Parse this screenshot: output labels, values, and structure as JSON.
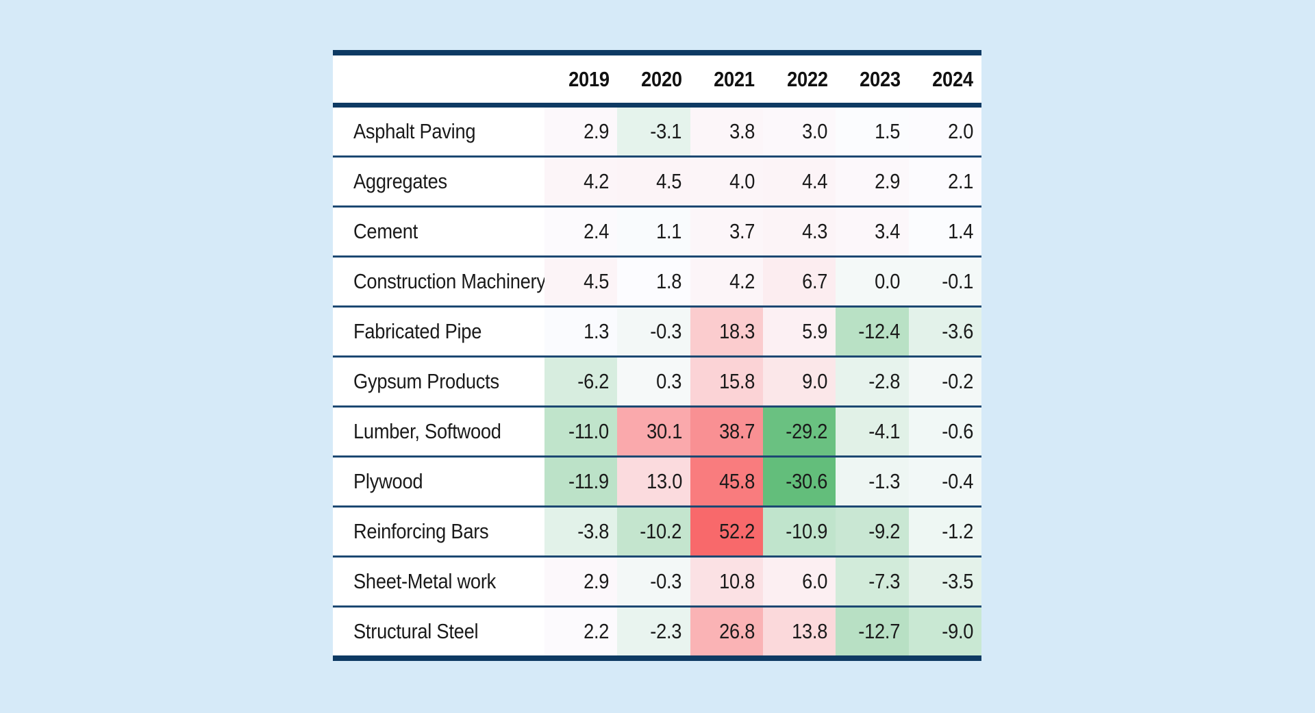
{
  "page": {
    "background_color": "#d6eaf8"
  },
  "table_style": {
    "border_color": "#0e3a63",
    "separator_color": "#1c4872",
    "header_background": "#ffffff",
    "label_column_background": "#ffffff",
    "text_color": "#1a1a1a",
    "color_scale": {
      "max_color": "#F8696B",
      "mid_color": "#FCFCFF",
      "min_color": "#63BE7B",
      "midpoint_rule": "median"
    }
  },
  "chart_data": {
    "type": "heatmap",
    "title": "",
    "x": [
      "2019",
      "2020",
      "2021",
      "2022",
      "2023",
      "2024"
    ],
    "corner_label": "",
    "series": [
      {
        "name": "Asphalt Paving",
        "values": [
          2.9,
          -3.1,
          3.8,
          3.0,
          1.5,
          2.0
        ]
      },
      {
        "name": "Aggregates",
        "values": [
          4.2,
          4.5,
          4.0,
          4.4,
          2.9,
          2.1
        ]
      },
      {
        "name": "Cement",
        "values": [
          2.4,
          1.1,
          3.7,
          4.3,
          3.4,
          1.4
        ]
      },
      {
        "name": "Construction Machinery",
        "values": [
          4.5,
          1.8,
          4.2,
          6.7,
          0.0,
          -0.1
        ]
      },
      {
        "name": "Fabricated Pipe",
        "values": [
          1.3,
          -0.3,
          18.3,
          5.9,
          -12.4,
          -3.6
        ]
      },
      {
        "name": "Gypsum Products",
        "values": [
          -6.2,
          0.3,
          15.8,
          9.0,
          -2.8,
          -0.2
        ]
      },
      {
        "name": "Lumber, Softwood",
        "values": [
          -11.0,
          30.1,
          38.7,
          -29.2,
          -4.1,
          -0.6
        ]
      },
      {
        "name": "Plywood",
        "values": [
          -11.9,
          13.0,
          45.8,
          -30.6,
          -1.3,
          -0.4
        ]
      },
      {
        "name": "Reinforcing Bars",
        "values": [
          -3.8,
          -10.2,
          52.2,
          -10.9,
          -9.2,
          -1.2
        ]
      },
      {
        "name": "Sheet-Metal work",
        "values": [
          2.9,
          -0.3,
          10.8,
          6.0,
          -7.3,
          -3.5
        ]
      },
      {
        "name": "Structural Steel",
        "values": [
          2.2,
          -2.3,
          26.8,
          13.8,
          -12.7,
          -9.0
        ]
      }
    ],
    "value_range": [
      -30.6,
      52.2
    ],
    "legend": "none",
    "grid": "horizontal rules between rows",
    "color_mapping": "diverging: red for high values, white near median, green for low values"
  }
}
